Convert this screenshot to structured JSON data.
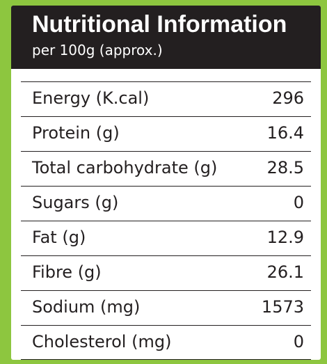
{
  "header": {
    "title": "Nutritional Information",
    "subtitle": "per 100g (approx.)"
  },
  "rows": [
    {
      "label": "Energy (K.cal)",
      "value": "296"
    },
    {
      "label": "Protein (g)",
      "value": "16.4"
    },
    {
      "label": "Total carbohydrate (g)",
      "value": "28.5"
    },
    {
      "label": "Sugars (g)",
      "value": "0"
    },
    {
      "label": "Fat (g)",
      "value": "12.9"
    },
    {
      "label": "Fibre (g)",
      "value": "26.1"
    },
    {
      "label": "Sodium (mg)",
      "value": "1573"
    },
    {
      "label": "Cholesterol (mg)",
      "value": "0"
    }
  ],
  "colors": {
    "background": "#8dc63f",
    "header": "#231f20",
    "panel": "#ffffff",
    "text": "#231f20"
  }
}
